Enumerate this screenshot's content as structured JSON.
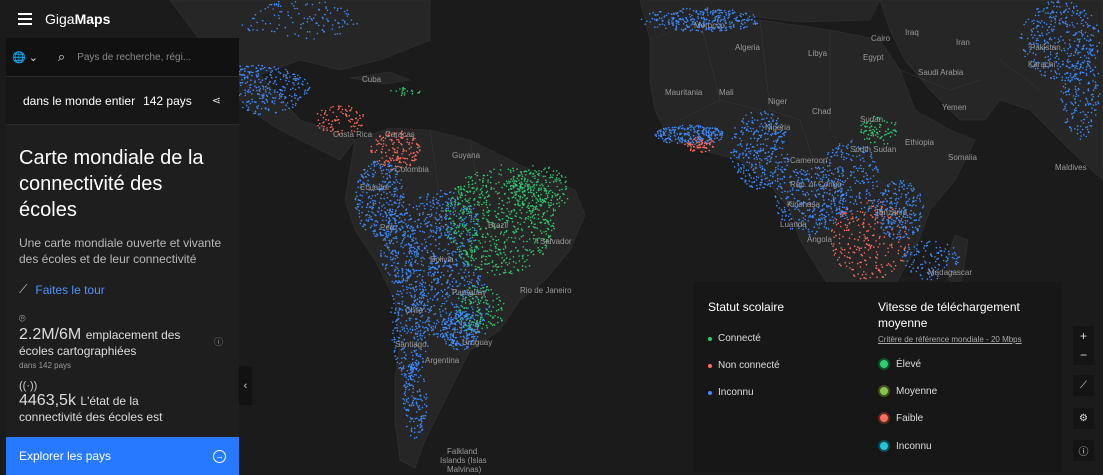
{
  "app": {
    "logo_light": "Giga",
    "logo_bold": "Maps"
  },
  "search": {
    "placeholder": "Pays de recherche, régi..."
  },
  "scope": {
    "label": "dans le monde entier",
    "count": "142 pays"
  },
  "panel": {
    "title": "Carte mondiale de la connectivité des écoles",
    "subtitle": "Une carte mondiale ouverte et vivante des écoles et de leur connectivité",
    "tour_label": "Faites le tour",
    "stat1": {
      "value": "2.2M/6M",
      "label_inline": "emplacement des",
      "label_rest": "écoles cartographiées",
      "sub": "dans 142 pays"
    },
    "stat2": {
      "value": "4463,5k",
      "label_inline": "L'état de la",
      "label_rest": "connectivité des écoles est"
    },
    "explore_label": "Explorer les pays"
  },
  "legend": {
    "status_title": "Statut scolaire",
    "status_items": [
      {
        "label": "Connecté",
        "color": "#2ecc71"
      },
      {
        "label": "Non connecté",
        "color": "#ff6b5b"
      },
      {
        "label": "Inconnu",
        "color": "#3d8bff"
      }
    ],
    "speed_title_line1": "Vitesse de téléchargement",
    "speed_title_line2": "moyenne",
    "speed_sub": "Critère de référence mondiale - 20 Mbps",
    "speed_items": [
      {
        "label": "Élevé",
        "color": "#2ecc71"
      },
      {
        "label": "Moyenne",
        "color": "#8bc34a"
      },
      {
        "label": "Faible",
        "color": "#ff6b5b"
      },
      {
        "label": "Inconnu",
        "color": "#26c6da"
      }
    ]
  },
  "controls": {
    "zoom_in": "+",
    "zoom_out": "−"
  },
  "map_labels": {
    "morocco": "Morocco",
    "algeria": "Algeria",
    "libya": "Libya",
    "egypt": "Egypt",
    "cairo": "Cairo",
    "tunisia": "Tunisia",
    "mauritania": "Mauritania",
    "mali": "Mali",
    "niger": "Niger",
    "chad": "Chad",
    "sudan": "Sudan",
    "nigeria": "Nigeria",
    "cameroon": "Cameroon",
    "congo": "Rep. of Congo",
    "kinshasa": "Kinshasa",
    "angola": "Angola",
    "luanda": "Luanda",
    "saudi": "Saudi Arabia",
    "yemen": "Yemen",
    "pakistan": "Pakistan",
    "karachi": "Karachi",
    "iraq": "Iraq",
    "iran": "Iran",
    "maldives": "Maldives",
    "madagascar": "Madagascar",
    "south_sudan": "South Sudan",
    "ethiopia": "Ethiopia",
    "somalia": "Somalia",
    "tanzania": "Tanzania",
    "colombia": "Colombia",
    "ecuador": "Ecuador",
    "peru": "Peru",
    "brazil": "Brazil",
    "bolivia": "Bolivia",
    "paraguay": "Paraguay",
    "chile": "Chile",
    "santiago": "Santiago",
    "argentina": "Argentina",
    "uruguay": "Uruguay",
    "caracas": "Caracas",
    "venezuela": "Venezuela",
    "guyana": "Guyana",
    "rio": "Rio de Janeiro",
    "salvador": "Salvador",
    "costa_rica": "Costa Rica",
    "cuba": "Cuba",
    "falkland1": "Falkland",
    "falkland2": "Islands (Islas",
    "falkland3": "Malvinas)"
  }
}
